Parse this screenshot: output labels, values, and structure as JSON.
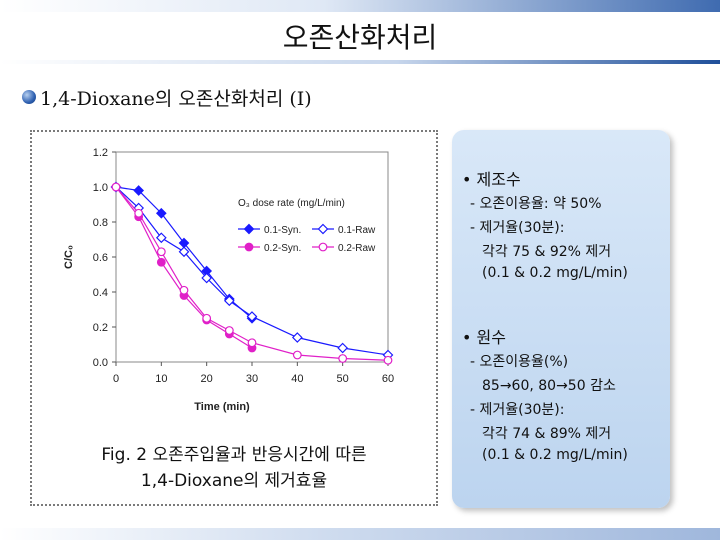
{
  "slide": {
    "title": "오존산화처리",
    "subtitle": "1,4-Dioxane의 오존산화처리 (I)"
  },
  "caption": {
    "line1": "Fig. 2 오존주입율과 반응시간에 따른",
    "line2": "1,4-Dioxane의 제거효율"
  },
  "panel": {
    "sections": [
      {
        "heading": "• 제조수",
        "lines": [
          "- 오존이용율: 약 50%",
          "- 제거율(30분):",
          "각각 75 & 92% 제거",
          "(0.1 & 0.2 mg/L/min)"
        ]
      },
      {
        "heading": "• 원수",
        "lines": [
          "- 오존이용율(%)",
          "85→60, 80→50 감소",
          "- 제거율(30분):",
          "각각 74 & 89% 제거",
          "(0.1 & 0.2 mg/L/min)"
        ]
      }
    ]
  },
  "chart_data": {
    "type": "line",
    "xlabel": "Time (min)",
    "ylabel": "C/C₀",
    "xlim": [
      0,
      60
    ],
    "ylim": [
      0,
      1.2
    ],
    "x_ticks": [
      0,
      10,
      20,
      30,
      40,
      50,
      60
    ],
    "y_ticks": [
      "0.0",
      "0.2",
      "0.4",
      "0.6",
      "0.8",
      "1.0",
      "1.2"
    ],
    "legend_title": "O₃ dose rate (mg/L/min)",
    "legend_position": "center-right",
    "series": [
      {
        "name": "0.1-Syn.",
        "color": "#1a1aff",
        "marker": "diamond-filled",
        "x": [
          0,
          5,
          10,
          15,
          20,
          25,
          30
        ],
        "y": [
          1.0,
          0.98,
          0.85,
          0.68,
          0.52,
          0.36,
          0.25
        ]
      },
      {
        "name": "0.1-Raw",
        "color": "#1a1aff",
        "marker": "diamond-open",
        "x": [
          0,
          5,
          10,
          15,
          20,
          25,
          30,
          40,
          50,
          60
        ],
        "y": [
          1.0,
          0.88,
          0.71,
          0.63,
          0.48,
          0.35,
          0.26,
          0.14,
          0.08,
          0.04
        ]
      },
      {
        "name": "0.2-Syn.",
        "color": "#e020c8",
        "marker": "circle-filled",
        "x": [
          0,
          5,
          10,
          15,
          20,
          25,
          30
        ],
        "y": [
          1.0,
          0.83,
          0.57,
          0.38,
          0.24,
          0.16,
          0.08
        ]
      },
      {
        "name": "0.2-Raw",
        "color": "#e020c8",
        "marker": "circle-open",
        "x": [
          0,
          5,
          10,
          15,
          20,
          25,
          30,
          40,
          50,
          60
        ],
        "y": [
          1.0,
          0.85,
          0.63,
          0.41,
          0.25,
          0.18,
          0.11,
          0.04,
          0.02,
          0.01
        ]
      }
    ]
  }
}
